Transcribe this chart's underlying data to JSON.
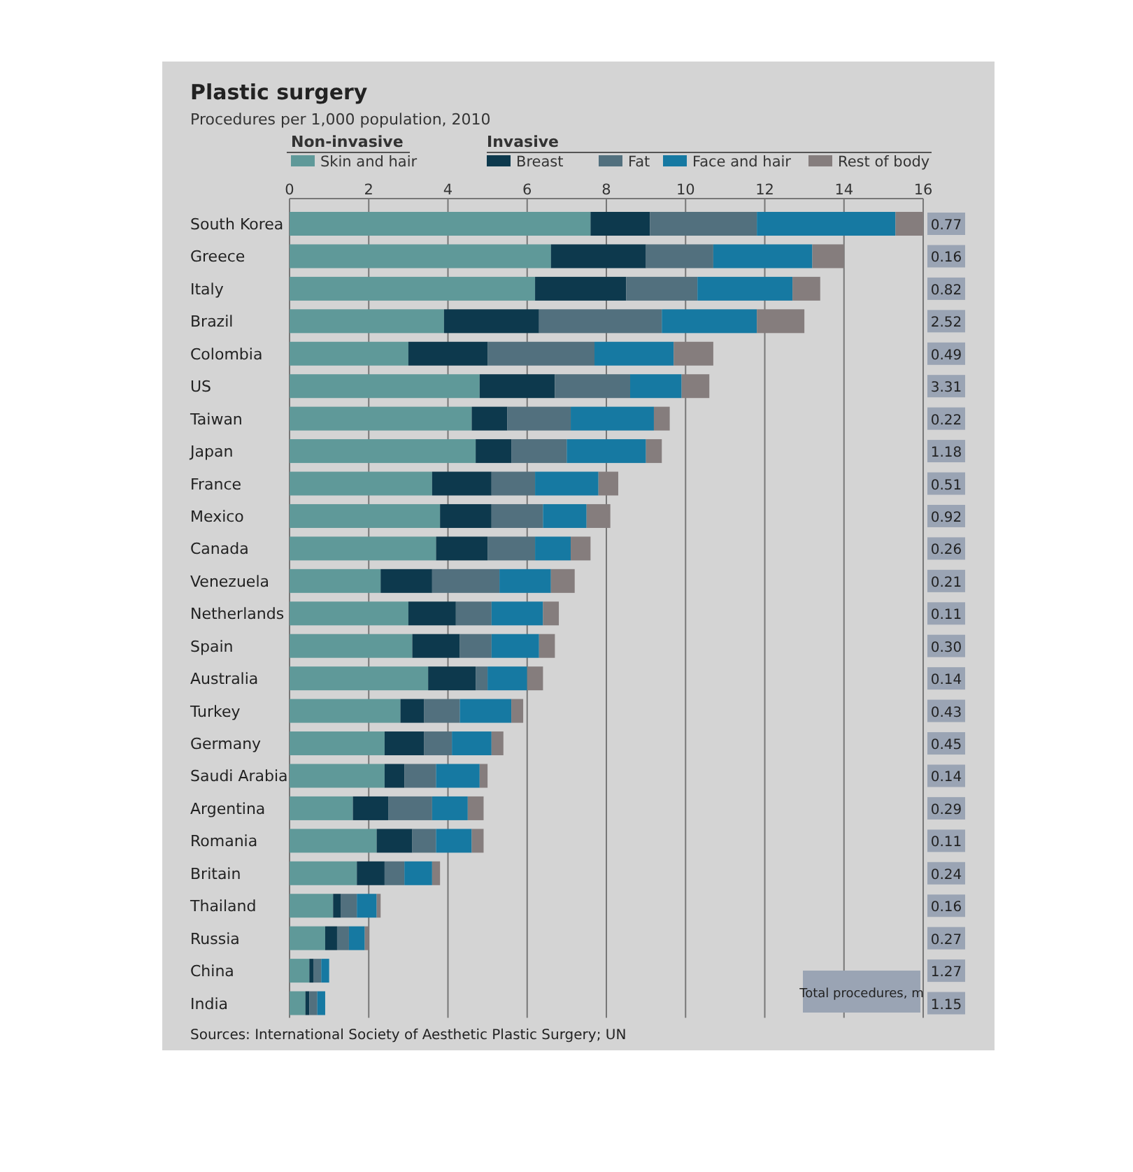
{
  "chart_data": {
    "type": "bar",
    "orientation": "horizontal",
    "stacked": true,
    "title": "Plastic surgery",
    "subtitle": "Procedures per 1,000 population, 2010",
    "categories": [
      "South Korea",
      "Greece",
      "Italy",
      "Brazil",
      "Colombia",
      "US",
      "Taiwan",
      "Japan",
      "France",
      "Mexico",
      "Canada",
      "Venezuela",
      "Netherlands",
      "Spain",
      "Australia",
      "Turkey",
      "Germany",
      "Saudi Arabia",
      "Argentina",
      "Romania",
      "Britain",
      "Thailand",
      "Russia",
      "China",
      "India"
    ],
    "series": [
      {
        "name": "Skin and hair",
        "color": "#5f9999",
        "values": [
          7.6,
          6.6,
          6.2,
          3.9,
          3.0,
          4.8,
          4.6,
          4.7,
          3.6,
          3.8,
          3.7,
          2.3,
          3.0,
          3.1,
          3.5,
          2.8,
          2.4,
          2.4,
          1.6,
          2.2,
          1.7,
          1.1,
          0.9,
          0.5,
          0.4
        ]
      },
      {
        "name": "Breast",
        "color": "#0d394d",
        "values": [
          1.5,
          2.4,
          2.3,
          2.4,
          2.0,
          1.9,
          0.9,
          0.9,
          1.5,
          1.3,
          1.3,
          1.3,
          1.2,
          1.2,
          1.2,
          0.6,
          1.0,
          0.5,
          0.9,
          0.9,
          0.7,
          0.2,
          0.3,
          0.1,
          0.1
        ]
      },
      {
        "name": "Fat",
        "color": "#52707e",
        "values": [
          2.7,
          1.7,
          1.8,
          3.1,
          2.7,
          1.9,
          1.6,
          1.4,
          1.1,
          1.3,
          1.2,
          1.7,
          0.9,
          0.8,
          0.3,
          0.9,
          0.7,
          0.8,
          1.1,
          0.6,
          0.5,
          0.4,
          0.3,
          0.2,
          0.2
        ]
      },
      {
        "name": "Face and hair",
        "color": "#1679a2",
        "values": [
          3.5,
          2.5,
          2.4,
          2.4,
          2.0,
          1.3,
          2.1,
          2.0,
          1.6,
          1.1,
          0.9,
          1.3,
          1.3,
          1.2,
          1.0,
          1.3,
          1.0,
          1.1,
          0.9,
          0.9,
          0.7,
          0.5,
          0.4,
          0.2,
          0.2
        ]
      },
      {
        "name": "Rest of body",
        "color": "#857d7d",
        "values": [
          0.7,
          0.8,
          0.7,
          1.2,
          1.0,
          0.7,
          0.4,
          0.4,
          0.5,
          0.6,
          0.5,
          0.6,
          0.4,
          0.4,
          0.4,
          0.3,
          0.3,
          0.2,
          0.4,
          0.3,
          0.2,
          0.1,
          0.1,
          null,
          null
        ]
      }
    ],
    "xlim": [
      0,
      16
    ],
    "xticks": [
      0,
      2,
      4,
      6,
      8,
      10,
      12,
      14,
      16
    ],
    "grid": "x",
    "legend": "top",
    "annotations": [
      "Non-invasive",
      "Invasive",
      "Sources: International Society of Aesthetic Plastic Surgery; UN",
      "Total procedures, m",
      "0.77",
      "0.16",
      "0.82",
      "2.52",
      "0.49",
      "3.31",
      "0.22",
      "1.18",
      "0.51",
      "0.92",
      "0.26",
      "0.21",
      "0.11",
      "0.30",
      "0.14",
      "0.43",
      "0.45",
      "0.14",
      "0.29",
      "0.11",
      "0.24",
      "0.16",
      "0.27",
      "1.27",
      "1.15"
    ]
  }
}
